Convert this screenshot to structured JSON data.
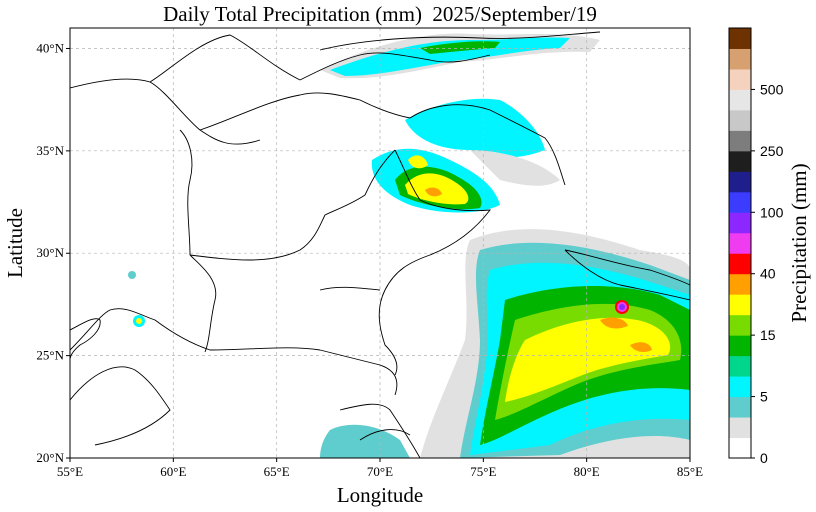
{
  "title": "Daily Total Precipitation (mm)  2025/September/19",
  "xlabel": "Longitude",
  "ylabel": "Latitude",
  "x_ticks": [
    "55°E",
    "60°E",
    "65°E",
    "70°E",
    "75°E",
    "80°E",
    "85°E"
  ],
  "y_ticks": [
    "20°N",
    "25°N",
    "30°N",
    "35°N",
    "40°N"
  ],
  "colorbar": {
    "label": "Precipitation (mm)",
    "tick_labels": [
      "0",
      "5",
      "15",
      "40",
      "100",
      "250",
      "500"
    ],
    "colors": [
      "#ffffff",
      "#e1e1e1",
      "#5fcdcd",
      "#00f5ff",
      "#00d78c",
      "#00b400",
      "#78dc00",
      "#ffff00",
      "#ffa000",
      "#ff0000",
      "#f03cf0",
      "#8c28ff",
      "#3c3cff",
      "#1e1e8c",
      "#1e1e1e",
      "#7d7d7d",
      "#c8c8c8",
      "#e6e6e6",
      "#f5d2bd",
      "#d7a070",
      "#6e3200"
    ]
  },
  "map": {
    "extent": {
      "lon": [
        55,
        85
      ],
      "lat": [
        20,
        41
      ]
    },
    "gridlines": "dashed gray",
    "colors": {
      "border": "#000000",
      "grid": "#b4b4b4",
      "frame": "#000000"
    }
  }
}
